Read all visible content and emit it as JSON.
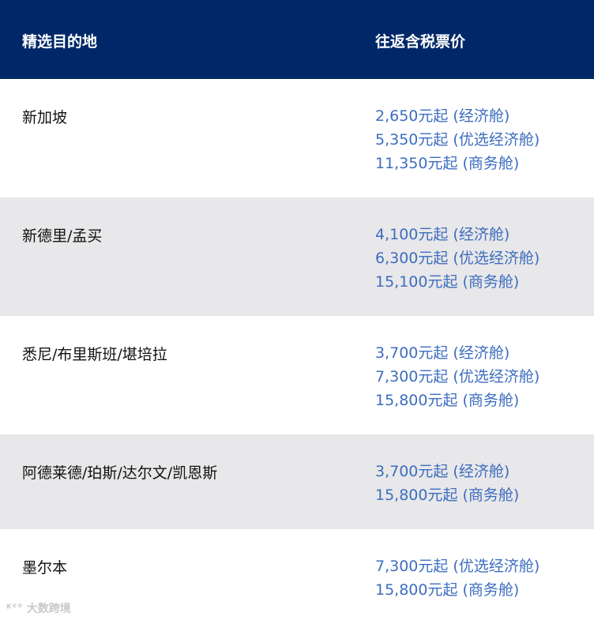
{
  "header": {
    "destination": "精选目的地",
    "price": "往返含税票价"
  },
  "rows": [
    {
      "destination": "新加坡",
      "prices": [
        "2,650元起 (经济舱)",
        "5,350元起 (优选经济舱)",
        "11,350元起 (商务舱)"
      ]
    },
    {
      "destination": "新德里/孟买",
      "prices": [
        "4,100元起 (经济舱)",
        "6,300元起 (优选经济舱)",
        "15,100元起 (商务舱)"
      ]
    },
    {
      "destination": "悉尼/布里斯班/堪培拉",
      "prices": [
        "3,700元起 (经济舱)",
        "7,300元起 (优选经济舱)",
        "15,800元起 (商务舱)"
      ]
    },
    {
      "destination": "阿德莱德/珀斯/达尔文/凯恩斯",
      "prices": [
        "3,700元起 (经济舱)",
        "15,800元起 (商务舱)"
      ]
    },
    {
      "destination": "墨尔本",
      "prices": [
        "7,300元起 (优选经济舱)",
        "15,800元起 (商务舱)"
      ]
    }
  ],
  "watermark": "大数跨境",
  "colors": {
    "header_bg": "#002868",
    "price_text": "#3d6ebf",
    "alt_row": "#e8e7e9"
  }
}
